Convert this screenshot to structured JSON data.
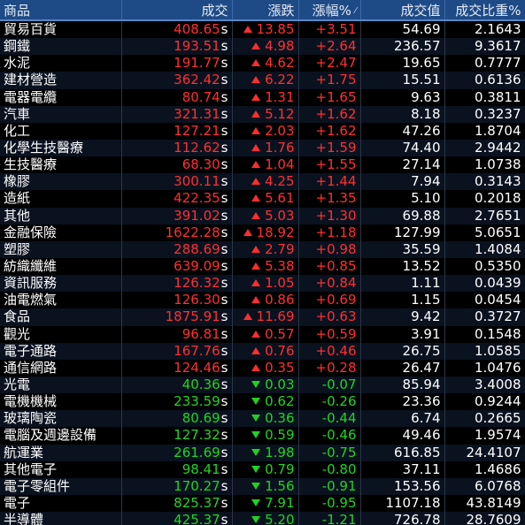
{
  "colors": {
    "header_bg": "#1e4a86",
    "up": "#ff3030",
    "down": "#22d422",
    "text": "#ffffff"
  },
  "header": {
    "name": "商品",
    "price": "成交",
    "change": "漲跌",
    "change_pct": "漲幅%",
    "volume": "成交值",
    "ratio": "成交比重%"
  },
  "rows": [
    {
      "name": "貿易百貨",
      "price": "408.65",
      "change": "13.85",
      "pct": "+3.51",
      "volume": "54.69",
      "ratio": "2.1643",
      "dir": "up"
    },
    {
      "name": "鋼鐵",
      "price": "193.51",
      "change": "4.98",
      "pct": "+2.64",
      "volume": "236.57",
      "ratio": "9.3617",
      "dir": "up"
    },
    {
      "name": "水泥",
      "price": "191.77",
      "change": "4.62",
      "pct": "+2.47",
      "volume": "19.65",
      "ratio": "0.7777",
      "dir": "up"
    },
    {
      "name": "建材營造",
      "price": "362.42",
      "change": "6.22",
      "pct": "+1.75",
      "volume": "15.51",
      "ratio": "0.6136",
      "dir": "up"
    },
    {
      "name": "電器電纜",
      "price": "80.74",
      "change": "1.31",
      "pct": "+1.65",
      "volume": "9.63",
      "ratio": "0.3811",
      "dir": "up"
    },
    {
      "name": "汽車",
      "price": "321.31",
      "change": "5.12",
      "pct": "+1.62",
      "volume": "8.18",
      "ratio": "0.3237",
      "dir": "up"
    },
    {
      "name": "化工",
      "price": "127.21",
      "change": "2.03",
      "pct": "+1.62",
      "volume": "47.26",
      "ratio": "1.8704",
      "dir": "up"
    },
    {
      "name": "化學生技醫療",
      "price": "112.62",
      "change": "1.76",
      "pct": "+1.59",
      "volume": "74.40",
      "ratio": "2.9442",
      "dir": "up"
    },
    {
      "name": "生技醫療",
      "price": "68.30",
      "change": "1.04",
      "pct": "+1.55",
      "volume": "27.14",
      "ratio": "1.0738",
      "dir": "up"
    },
    {
      "name": "橡膠",
      "price": "300.11",
      "change": "4.25",
      "pct": "+1.44",
      "volume": "7.94",
      "ratio": "0.3143",
      "dir": "up"
    },
    {
      "name": "造紙",
      "price": "422.35",
      "change": "5.61",
      "pct": "+1.35",
      "volume": "5.10",
      "ratio": "0.2018",
      "dir": "up"
    },
    {
      "name": "其他",
      "price": "391.02",
      "change": "5.03",
      "pct": "+1.30",
      "volume": "69.88",
      "ratio": "2.7651",
      "dir": "up"
    },
    {
      "name": "金融保險",
      "price": "1622.28",
      "change": "18.92",
      "pct": "+1.18",
      "volume": "127.99",
      "ratio": "5.0651",
      "dir": "up"
    },
    {
      "name": "塑膠",
      "price": "288.69",
      "change": "2.79",
      "pct": "+0.98",
      "volume": "35.59",
      "ratio": "1.4084",
      "dir": "up"
    },
    {
      "name": "紡織纖維",
      "price": "639.09",
      "change": "5.38",
      "pct": "+0.85",
      "volume": "13.52",
      "ratio": "0.5350",
      "dir": "up"
    },
    {
      "name": "資訊服務",
      "price": "126.32",
      "change": "1.05",
      "pct": "+0.84",
      "volume": "1.11",
      "ratio": "0.0439",
      "dir": "up"
    },
    {
      "name": "油電燃氣",
      "price": "126.30",
      "change": "0.86",
      "pct": "+0.69",
      "volume": "1.15",
      "ratio": "0.0454",
      "dir": "up"
    },
    {
      "name": "食品",
      "price": "1875.91",
      "change": "11.69",
      "pct": "+0.63",
      "volume": "9.42",
      "ratio": "0.3727",
      "dir": "up"
    },
    {
      "name": "觀光",
      "price": "96.81",
      "change": "0.57",
      "pct": "+0.59",
      "volume": "3.91",
      "ratio": "0.1548",
      "dir": "up"
    },
    {
      "name": "電子通路",
      "price": "167.76",
      "change": "0.76",
      "pct": "+0.46",
      "volume": "26.75",
      "ratio": "1.0585",
      "dir": "up"
    },
    {
      "name": "通信網路",
      "price": "124.46",
      "change": "0.35",
      "pct": "+0.28",
      "volume": "26.47",
      "ratio": "1.0476",
      "dir": "up"
    },
    {
      "name": "光電",
      "price": "40.36",
      "change": "0.03",
      "pct": "-0.07",
      "volume": "85.94",
      "ratio": "3.4008",
      "dir": "down"
    },
    {
      "name": "電機機械",
      "price": "233.59",
      "change": "0.62",
      "pct": "-0.26",
      "volume": "23.36",
      "ratio": "0.9244",
      "dir": "down"
    },
    {
      "name": "玻璃陶瓷",
      "price": "80.69",
      "change": "0.36",
      "pct": "-0.44",
      "volume": "6.74",
      "ratio": "0.2665",
      "dir": "down"
    },
    {
      "name": "電腦及週邊設備",
      "price": "127.32",
      "change": "0.59",
      "pct": "-0.46",
      "volume": "49.46",
      "ratio": "1.9574",
      "dir": "down"
    },
    {
      "name": "航運業",
      "price": "261.69",
      "change": "1.98",
      "pct": "-0.75",
      "volume": "616.85",
      "ratio": "24.4107",
      "dir": "down"
    },
    {
      "name": "其他電子",
      "price": "98.41",
      "change": "0.79",
      "pct": "-0.80",
      "volume": "37.11",
      "ratio": "1.4686",
      "dir": "down"
    },
    {
      "name": "電子零組件",
      "price": "170.27",
      "change": "1.56",
      "pct": "-0.91",
      "volume": "153.56",
      "ratio": "6.0768",
      "dir": "down"
    },
    {
      "name": "電子",
      "price": "825.37",
      "change": "7.91",
      "pct": "-0.95",
      "volume": "1107.18",
      "ratio": "43.8149",
      "dir": "down"
    },
    {
      "name": "半導體",
      "price": "425.37",
      "change": "5.20",
      "pct": "-1.21",
      "volume": "726.78",
      "ratio": "28.7609",
      "dir": "down"
    }
  ],
  "price_suffix": "s"
}
